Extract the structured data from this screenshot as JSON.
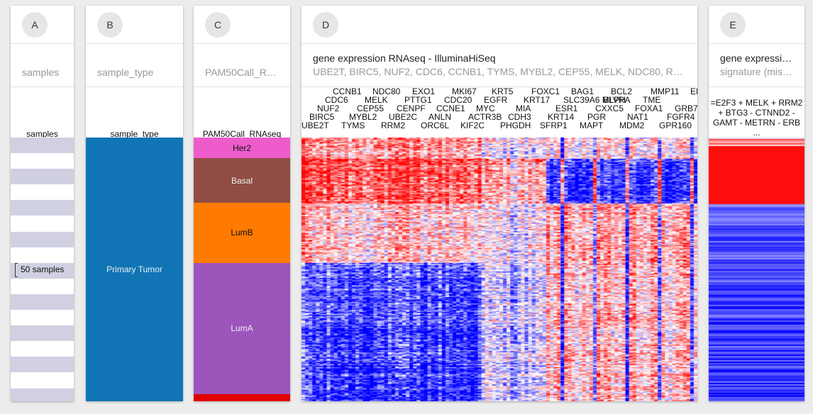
{
  "columns": {
    "a": {
      "letter": "A",
      "subtitle": "samples",
      "label": "samples",
      "sample_count": "50 samples"
    },
    "b": {
      "letter": "B",
      "subtitle": "sample_type",
      "label": "sample_type",
      "category": "Primary Tumor",
      "color": "#1175b5"
    },
    "c": {
      "letter": "C",
      "subtitle": "PAM50Call_R…",
      "label": "PAM50Call_RNAseq",
      "categories": [
        {
          "name": "Her2",
          "color": "#ee5ccb",
          "fraction": 0.078,
          "text_color": "#111"
        },
        {
          "name": "Basal",
          "color": "#8f4d43",
          "fraction": 0.17,
          "text_color": "#eee"
        },
        {
          "name": "LumB",
          "color": "#ff7a00",
          "fraction": 0.227,
          "text_color": "#111"
        },
        {
          "name": "LumA",
          "color": "#9d55bc",
          "fraction": 0.498,
          "text_color": "#eee"
        },
        {
          "name": "",
          "color": "#e00000",
          "fraction": 0.027,
          "text_color": "#111"
        }
      ]
    },
    "d": {
      "letter": "D",
      "title": "gene expression RNAseq - IlluminaHiSeq",
      "subtitle": "UBE2T, BIRC5, NUF2, CDC6, CCNB1, TYMS, MYBL2, CEP55, MELK, NDC80, R…",
      "gene_rows": [
        [
          "CCNB1",
          "NDC80",
          "EXO1",
          "MKI67",
          "KRT5",
          "FOXC1",
          "BAG1",
          "BCL2",
          "MMP11",
          "ER"
        ],
        [
          "CDC6",
          "MELK",
          "PTTG1",
          "CDC20",
          "EGFR",
          "KRT17",
          "SLC39A6 MLPH",
          "BLVRA",
          "TME"
        ],
        [
          "NUF2",
          "CEP55",
          "CENPF",
          "CCNE1",
          "MYC",
          "MIA",
          "ESR1",
          "CXXC5",
          "FOXA1",
          "GRB7"
        ],
        [
          "BIRC5",
          "MYBL2",
          "UBE2C",
          "ANLN",
          "ACTR3B",
          "CDH3",
          "KRT14",
          "PGR",
          "NAT1",
          "FGFR4"
        ],
        [
          "UBE2T",
          "TYMS",
          "RRM2",
          "ORC6L",
          "KIF2C",
          "PHGDH",
          "SFRP1",
          "MAPT",
          "MDM2",
          "GPR160"
        ]
      ],
      "colors": {
        "high": "#ff0000",
        "low": "#0000ff",
        "mid": "#ffffff"
      }
    },
    "e": {
      "letter": "E",
      "title": "gene expressi…",
      "subtitle": "signature (mis…",
      "formula_lines": [
        "=E2F3 + MELK + RRM2",
        "+ BTG3 - CTNND2 -",
        "GAMT - METRN - ERB",
        "..."
      ]
    }
  }
}
